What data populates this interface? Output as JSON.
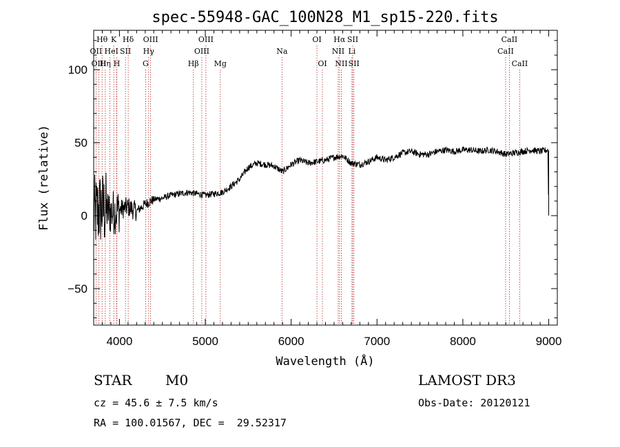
{
  "chart_data": {
    "type": "line",
    "title": "spec-55948-GAC_100N28_M1_sp15-220.fits",
    "xlabel": "Wavelength (Å)",
    "ylabel": "Flux (relative)",
    "xlim": [
      3700,
      9100
    ],
    "ylim": [
      -75,
      127
    ],
    "xticks": [
      4000,
      5000,
      6000,
      7000,
      8000,
      9000
    ],
    "yticks": [
      -50,
      0,
      50,
      100
    ],
    "line_color": "#000000",
    "marker_color": "#b22222",
    "spectrum_anchors": [
      {
        "x": 3700,
        "y": 0
      },
      {
        "x": 3780,
        "y": 5
      },
      {
        "x": 3900,
        "y": 2
      },
      {
        "x": 4000,
        "y": 4
      },
      {
        "x": 4100,
        "y": 6
      },
      {
        "x": 4200,
        "y": 3
      },
      {
        "x": 4300,
        "y": 8
      },
      {
        "x": 4400,
        "y": 11
      },
      {
        "x": 4500,
        "y": 12
      },
      {
        "x": 4600,
        "y": 14
      },
      {
        "x": 4700,
        "y": 15
      },
      {
        "x": 4800,
        "y": 16
      },
      {
        "x": 4900,
        "y": 15
      },
      {
        "x": 5000,
        "y": 14
      },
      {
        "x": 5100,
        "y": 15
      },
      {
        "x": 5200,
        "y": 16
      },
      {
        "x": 5300,
        "y": 20
      },
      {
        "x": 5400,
        "y": 25
      },
      {
        "x": 5500,
        "y": 33
      },
      {
        "x": 5600,
        "y": 36
      },
      {
        "x": 5700,
        "y": 35
      },
      {
        "x": 5800,
        "y": 34
      },
      {
        "x": 5900,
        "y": 30
      },
      {
        "x": 6000,
        "y": 35
      },
      {
        "x": 6100,
        "y": 38
      },
      {
        "x": 6200,
        "y": 36
      },
      {
        "x": 6300,
        "y": 37
      },
      {
        "x": 6400,
        "y": 38
      },
      {
        "x": 6500,
        "y": 40
      },
      {
        "x": 6600,
        "y": 41
      },
      {
        "x": 6700,
        "y": 36
      },
      {
        "x": 6800,
        "y": 35
      },
      {
        "x": 6900,
        "y": 37
      },
      {
        "x": 7000,
        "y": 40
      },
      {
        "x": 7100,
        "y": 38
      },
      {
        "x": 7200,
        "y": 40
      },
      {
        "x": 7300,
        "y": 43
      },
      {
        "x": 7400,
        "y": 44
      },
      {
        "x": 7500,
        "y": 42
      },
      {
        "x": 7600,
        "y": 42
      },
      {
        "x": 7700,
        "y": 44
      },
      {
        "x": 7800,
        "y": 45
      },
      {
        "x": 7900,
        "y": 44
      },
      {
        "x": 8000,
        "y": 45
      },
      {
        "x": 8100,
        "y": 45
      },
      {
        "x": 8200,
        "y": 44
      },
      {
        "x": 8300,
        "y": 45
      },
      {
        "x": 8400,
        "y": 44
      },
      {
        "x": 8500,
        "y": 42
      },
      {
        "x": 8600,
        "y": 43
      },
      {
        "x": 8700,
        "y": 44
      },
      {
        "x": 8800,
        "y": 45
      },
      {
        "x": 8900,
        "y": 44
      },
      {
        "x": 8990,
        "y": 45
      },
      {
        "x": 9000,
        "y": 0
      }
    ],
    "spectral_lines": [
      {
        "label": "Hθ",
        "wavelength": 3798,
        "row": 1
      },
      {
        "label": "OII",
        "wavelength": 3727,
        "row": 2
      },
      {
        "label": "OIII",
        "wavelength": 3760,
        "row": 3
      },
      {
        "label": "He",
        "wavelength": 3889,
        "row": 2
      },
      {
        "label": "Hη",
        "wavelength": 3835,
        "row": 3
      },
      {
        "label": "K",
        "wavelength": 3934,
        "row": 1
      },
      {
        "label": "H",
        "wavelength": 3969,
        "row": 3
      },
      {
        "label": "I",
        "wavelength": 3970,
        "row": 2
      },
      {
        "label": "SII",
        "wavelength": 4070,
        "row": 2
      },
      {
        "label": "Hδ",
        "wavelength": 4102,
        "row": 1
      },
      {
        "label": "OIII",
        "wavelength": 4363,
        "row": 1
      },
      {
        "label": "Hγ",
        "wavelength": 4340,
        "row": 2
      },
      {
        "label": "G",
        "wavelength": 4305,
        "row": 3
      },
      {
        "label": "Hβ",
        "wavelength": 4861,
        "row": 3
      },
      {
        "label": "OIII",
        "wavelength": 5007,
        "row": 1
      },
      {
        "label": "OIII",
        "wavelength": 4959,
        "row": 2
      },
      {
        "label": "Mg",
        "wavelength": 5175,
        "row": 3
      },
      {
        "label": "Na",
        "wavelength": 5893,
        "row": 2
      },
      {
        "label": "OI",
        "wavelength": 6300,
        "row": 1
      },
      {
        "label": "OI",
        "wavelength": 6364,
        "row": 3
      },
      {
        "label": "Hα",
        "wavelength": 6563,
        "row": 1
      },
      {
        "label": "NII",
        "wavelength": 6548,
        "row": 2
      },
      {
        "label": "NII",
        "wavelength": 6584,
        "row": 3
      },
      {
        "label": "SII",
        "wavelength": 6717,
        "row": 1
      },
      {
        "label": "Li",
        "wavelength": 6708,
        "row": 2
      },
      {
        "label": "SII",
        "wavelength": 6731,
        "row": 3
      },
      {
        "label": "CaII",
        "wavelength": 8542,
        "row": 1
      },
      {
        "label": "CaII",
        "wavelength": 8498,
        "row": 2
      },
      {
        "label": "CaII",
        "wavelength": 8662,
        "row": 3
      }
    ]
  },
  "info": {
    "object_class": "STAR",
    "subclass": "M0",
    "survey": "LAMOST DR3",
    "redshift": "cz = 45.6 ± 7.5 km/s",
    "obs_date": "Obs-Date: 20120121",
    "coords": "RA = 100.01567, DEC =  29.52317"
  }
}
